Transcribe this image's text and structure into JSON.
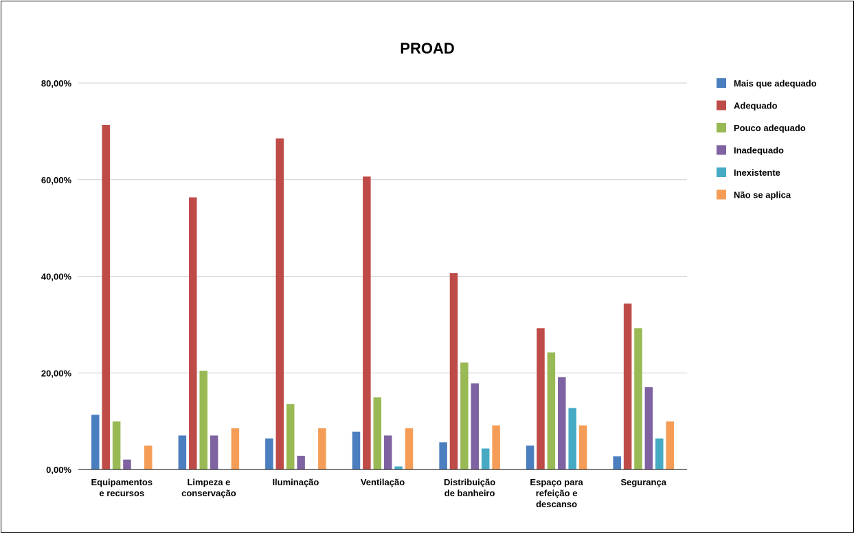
{
  "chart_data": {
    "type": "bar",
    "title": "PROAD",
    "xlabel": "",
    "ylabel": "",
    "ylim": [
      0,
      80
    ],
    "y_ticks": [
      "0,00%",
      "20,00%",
      "40,00%",
      "60,00%",
      "80,00%"
    ],
    "y_tick_values": [
      0,
      20,
      40,
      60,
      80
    ],
    "grid": true,
    "legend_position": "right",
    "categories": [
      [
        "Equipamentos",
        "e recursos"
      ],
      [
        "Limpeza e",
        "conservação"
      ],
      [
        "Iluminação"
      ],
      [
        "Ventilação"
      ],
      [
        "Distribuição",
        "de banheiro"
      ],
      [
        "Espaço para",
        "refeição e",
        "descanso"
      ],
      [
        "Segurança"
      ]
    ],
    "series": [
      {
        "name": "Mais que adequado",
        "color": "#4a7ebf",
        "values": [
          11.3,
          7.0,
          6.4,
          7.8,
          5.6,
          4.9,
          2.7
        ]
      },
      {
        "name": "Adequado",
        "color": "#be4b48",
        "values": [
          71.3,
          56.3,
          68.5,
          60.6,
          40.6,
          29.2,
          34.3
        ]
      },
      {
        "name": "Pouco adequado",
        "color": "#98b954",
        "values": [
          9.9,
          20.4,
          13.5,
          14.9,
          22.1,
          24.2,
          29.2
        ]
      },
      {
        "name": "Inadequado",
        "color": "#7e62a1",
        "values": [
          2.0,
          7.0,
          2.8,
          7.0,
          17.8,
          19.1,
          17.0
        ]
      },
      {
        "name": "Inexistente",
        "color": "#46aac5",
        "values": [
          0.0,
          0.0,
          0.0,
          0.6,
          4.3,
          12.7,
          6.4
        ]
      },
      {
        "name": "Não se aplica",
        "color": "#f59d56",
        "values": [
          4.9,
          8.5,
          8.5,
          8.5,
          9.1,
          9.1,
          9.9
        ]
      }
    ]
  }
}
